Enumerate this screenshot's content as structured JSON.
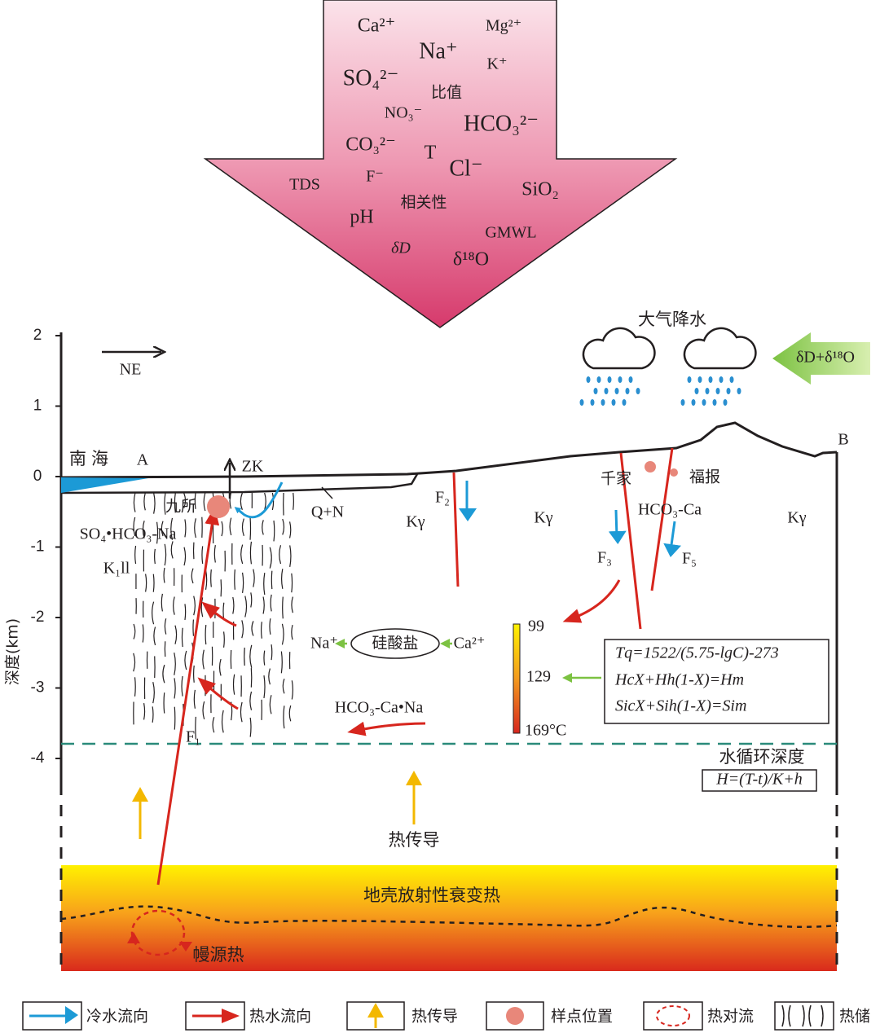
{
  "indicator_arrow": {
    "labels": [
      "Ca²⁺",
      "Mg²⁺",
      "Na⁺",
      "K⁺",
      "SO₄²⁻",
      "比值",
      "NO₃⁻",
      "HCO₃²⁻",
      "CO₃²⁻",
      "T",
      "Cl⁻",
      "TDS",
      "F⁻",
      "SiO₂",
      "相关性",
      "pH",
      "GMWL",
      "δD",
      "δ¹⁸O"
    ]
  },
  "axis": {
    "label": "深度(km)",
    "ticks": [
      2,
      1,
      0,
      -1,
      -2,
      -3,
      -4
    ]
  },
  "section": {
    "direction": "NE",
    "precipitation": "大气降水",
    "isotope_input": "δD+δ¹⁸O",
    "point_a": "A",
    "point_b": "B",
    "sea": "南海",
    "borehole": "ZK",
    "site_jiusuo": "九所",
    "water_type_1": "SO₄•HCO₃-Na",
    "stratum_k1ll": "K₁ll",
    "stratum_qn": "Q+N",
    "fault_f1": "F₁",
    "fault_f2": "F₂",
    "fault_f3": "F₃",
    "fault_f5": "F₅",
    "granite": [
      "Kγ",
      "Kγ",
      "Kγ"
    ],
    "site_qianjia": "千家",
    "site_fubao": "福报",
    "water_type_2": "HCO₃-Ca",
    "ion_na": "Na⁺",
    "silicate": "硅酸盐",
    "ion_ca": "Ca²⁺",
    "water_type_3": "HCO₃-Ca•Na",
    "circulation_depth": "水循环深度",
    "depth_formula": "H=(T-t)/K+h",
    "heat_conduction": "热传导",
    "crust_heat": "地壳放射性衰变热",
    "mantle_heat": "幔源热"
  },
  "temperature_scale": {
    "labels": [
      99,
      129,
      "169°C"
    ]
  },
  "formulas": [
    "Tq=1522/(5.75-lgC)-273",
    "HcX+Hh(1-X)=Hm",
    "SicX+Sih(1-X)=Sim"
  ],
  "legend": [
    "冷水流向",
    "热水流向",
    "热传导",
    "样点位置",
    "热对流",
    "热储"
  ]
}
